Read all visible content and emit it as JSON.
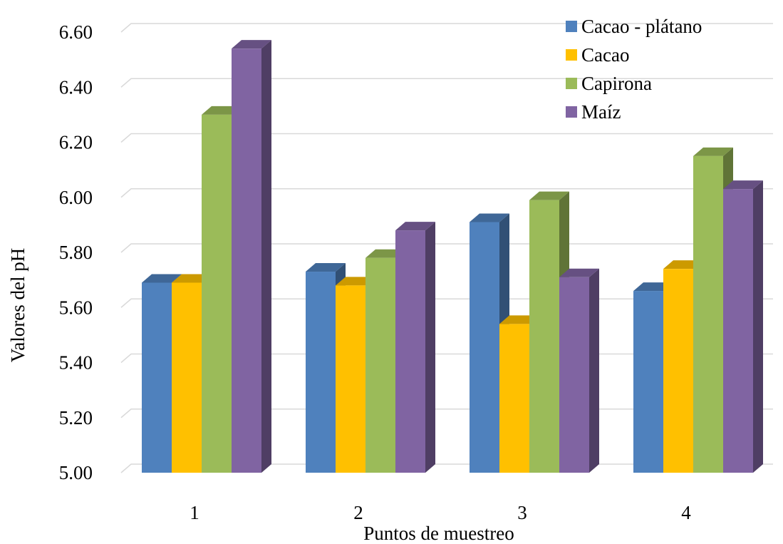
{
  "chart_data": {
    "type": "bar",
    "style": "3d-clustered-column",
    "xlabel": "Puntos de muestreo",
    "ylabel": "Valores del pH",
    "categories": [
      "1",
      "2",
      "3",
      "4"
    ],
    "ylim": [
      5.0,
      6.6
    ],
    "ytick_step": 0.2,
    "ytick_labels": [
      "5.00",
      "5.20",
      "5.40",
      "5.60",
      "5.80",
      "6.00",
      "6.20",
      "6.40",
      "6.60"
    ],
    "grid": true,
    "legend_position": "top-right",
    "series": [
      {
        "name": "Cacao - plátano",
        "color": "#4f81bd",
        "values": [
          5.69,
          5.73,
          5.91,
          5.66
        ]
      },
      {
        "name": "Cacao",
        "color": "#ffc000",
        "values": [
          5.69,
          5.68,
          5.54,
          5.74
        ]
      },
      {
        "name": "Capirona",
        "color": "#9bbb59",
        "values": [
          6.3,
          5.78,
          5.99,
          6.15
        ]
      },
      {
        "name": "Maíz",
        "color": "#8064a2",
        "values": [
          6.54,
          5.88,
          5.71,
          6.03
        ]
      }
    ]
  }
}
